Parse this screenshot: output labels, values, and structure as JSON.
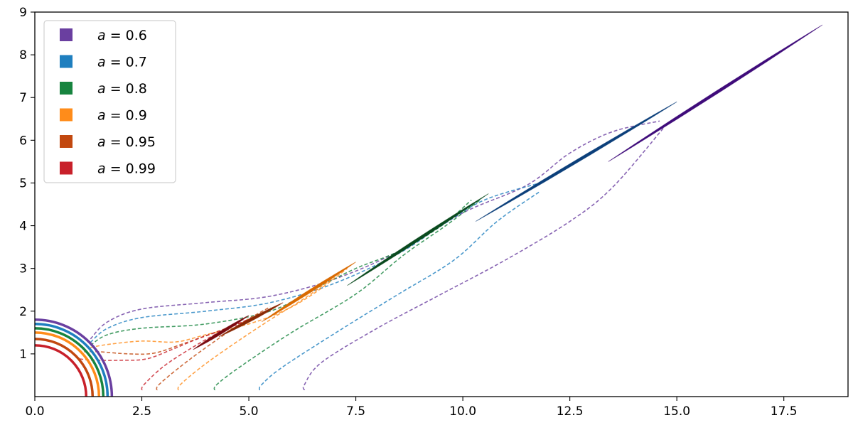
{
  "chart_data": {
    "type": "line",
    "title": "",
    "xlabel": "",
    "ylabel": "",
    "xlim": [
      0,
      19
    ],
    "ylim": [
      0,
      9
    ],
    "x_ticks": [
      0.0,
      2.5,
      5.0,
      7.5,
      10.0,
      12.5,
      15.0,
      17.5
    ],
    "x_tick_labels": [
      "0.0",
      "2.5",
      "5.0",
      "7.5",
      "10.0",
      "12.5",
      "15.0",
      "17.5"
    ],
    "y_ticks": [
      1,
      2,
      3,
      4,
      5,
      6,
      7,
      8,
      9
    ],
    "y_tick_labels": [
      "1",
      "2",
      "3",
      "4",
      "5",
      "6",
      "7",
      "8",
      "9"
    ],
    "grid": false,
    "legend_position": "top-left",
    "series": [
      {
        "name": "a = 0.6",
        "spin_label": "a",
        "spin_value": "= 0.6",
        "color": "#6a3fa0",
        "dark_color": "#3f0b7a",
        "horizon_radius": 1.8,
        "upper_path": [
          [
            1.3,
            1.35
          ],
          [
            1.7,
            1.75
          ],
          [
            2.5,
            2.05
          ],
          [
            4.0,
            2.2
          ],
          [
            5.5,
            2.35
          ],
          [
            7.0,
            2.75
          ],
          [
            8.5,
            3.4
          ],
          [
            10.0,
            4.3
          ],
          [
            11.5,
            4.95
          ],
          [
            12.5,
            5.7
          ],
          [
            13.5,
            6.2
          ],
          [
            14.6,
            6.45
          ]
        ],
        "lower_path": [
          [
            6.3,
            0.15
          ],
          [
            6.3,
            0.28
          ],
          [
            6.7,
            0.8
          ],
          [
            8.0,
            1.6
          ],
          [
            9.5,
            2.4
          ],
          [
            11.0,
            3.2
          ],
          [
            12.5,
            4.1
          ],
          [
            13.5,
            4.9
          ],
          [
            14.7,
            6.3
          ]
        ],
        "jet": [
          [
            13.4,
            5.5
          ],
          [
            18.4,
            8.7
          ]
        ]
      },
      {
        "name": "a = 0.7",
        "spin_label": "a",
        "spin_value": "= 0.7",
        "color": "#1f7fbf",
        "dark_color": "#0b3f7a",
        "horizon_radius": 1.7,
        "upper_path": [
          [
            1.3,
            1.27
          ],
          [
            1.7,
            1.6
          ],
          [
            2.5,
            1.85
          ],
          [
            4.0,
            2.0
          ],
          [
            5.5,
            2.2
          ],
          [
            7.0,
            2.65
          ],
          [
            8.5,
            3.35
          ],
          [
            9.5,
            4.0
          ],
          [
            10.5,
            4.6
          ],
          [
            11.8,
            5.0
          ]
        ],
        "lower_path": [
          [
            5.25,
            0.15
          ],
          [
            5.3,
            0.28
          ],
          [
            5.8,
            0.7
          ],
          [
            7.2,
            1.6
          ],
          [
            8.5,
            2.4
          ],
          [
            9.8,
            3.2
          ],
          [
            10.8,
            4.1
          ],
          [
            11.8,
            4.8
          ]
        ],
        "jet": [
          [
            10.3,
            4.1
          ],
          [
            15.0,
            6.9
          ]
        ]
      },
      {
        "name": "a = 0.8",
        "spin_label": "a",
        "spin_value": "= 0.8",
        "color": "#17843f",
        "dark_color": "#0a4a1e",
        "horizon_radius": 1.6,
        "upper_path": [
          [
            1.3,
            1.2
          ],
          [
            1.7,
            1.45
          ],
          [
            2.5,
            1.6
          ],
          [
            4.0,
            1.7
          ],
          [
            5.5,
            2.0
          ],
          [
            6.5,
            2.5
          ],
          [
            7.5,
            3.0
          ],
          [
            8.5,
            3.4
          ],
          [
            9.5,
            4.0
          ],
          [
            10.2,
            4.6
          ]
        ],
        "lower_path": [
          [
            4.2,
            0.15
          ],
          [
            4.25,
            0.28
          ],
          [
            4.8,
            0.7
          ],
          [
            6.0,
            1.5
          ],
          [
            7.5,
            2.4
          ],
          [
            8.6,
            3.3
          ],
          [
            9.6,
            4.0
          ],
          [
            10.4,
            4.6
          ]
        ],
        "jet": [
          [
            7.3,
            2.6
          ],
          [
            10.6,
            4.75
          ]
        ]
      },
      {
        "name": "a = 0.9",
        "spin_label": "a",
        "spin_value": "= 0.9",
        "color": "#ff8c1a",
        "dark_color": "#d96a00",
        "horizon_radius": 1.5,
        "upper_path": [
          [
            1.3,
            1.15
          ],
          [
            1.7,
            1.22
          ],
          [
            2.5,
            1.3
          ],
          [
            3.3,
            1.28
          ],
          [
            4.0,
            1.45
          ],
          [
            5.0,
            1.7
          ],
          [
            5.8,
            2.0
          ],
          [
            6.5,
            2.4
          ],
          [
            7.3,
            3.0
          ]
        ],
        "lower_path": [
          [
            3.35,
            0.15
          ],
          [
            3.4,
            0.28
          ],
          [
            3.9,
            0.7
          ],
          [
            4.6,
            1.2
          ],
          [
            5.5,
            1.8
          ],
          [
            6.3,
            2.3
          ],
          [
            7.0,
            2.8
          ]
        ],
        "jet": [
          [
            5.3,
            1.75
          ],
          [
            7.5,
            3.15
          ]
        ]
      },
      {
        "name": "a = 0.95",
        "spin_label": "a",
        "spin_value": "= 0.95",
        "color": "#c2480f",
        "dark_color": "#8a2a05",
        "horizon_radius": 1.35,
        "upper_path": [
          [
            1.15,
            1.05
          ],
          [
            1.5,
            1.05
          ],
          [
            2.2,
            1.0
          ],
          [
            2.8,
            1.02
          ],
          [
            3.5,
            1.25
          ],
          [
            4.2,
            1.5
          ],
          [
            5.0,
            1.8
          ],
          [
            5.6,
            2.1
          ]
        ],
        "lower_path": [
          [
            2.85,
            0.15
          ],
          [
            2.9,
            0.28
          ],
          [
            3.4,
            0.7
          ],
          [
            4.0,
            1.15
          ],
          [
            4.8,
            1.7
          ],
          [
            5.5,
            2.1
          ]
        ],
        "jet": [
          [
            4.3,
            1.4
          ],
          [
            5.8,
            2.2
          ]
        ]
      },
      {
        "name": "a = 0.99",
        "spin_label": "a",
        "spin_value": "= 0.99",
        "color": "#c8202a",
        "dark_color": "#7a0a10",
        "horizon_radius": 1.2,
        "upper_path": [
          [
            1.05,
            0.88
          ],
          [
            1.4,
            0.85
          ],
          [
            2.0,
            0.85
          ],
          [
            2.6,
            0.88
          ],
          [
            3.2,
            1.1
          ],
          [
            3.8,
            1.35
          ],
          [
            4.5,
            1.6
          ],
          [
            5.2,
            1.9
          ]
        ],
        "lower_path": [
          [
            2.5,
            0.15
          ],
          [
            2.55,
            0.28
          ],
          [
            3.0,
            0.7
          ],
          [
            3.6,
            1.1
          ],
          [
            4.3,
            1.5
          ],
          [
            5.0,
            1.8
          ]
        ],
        "jet": [
          [
            3.7,
            1.1
          ],
          [
            5.0,
            1.9
          ]
        ]
      }
    ]
  }
}
